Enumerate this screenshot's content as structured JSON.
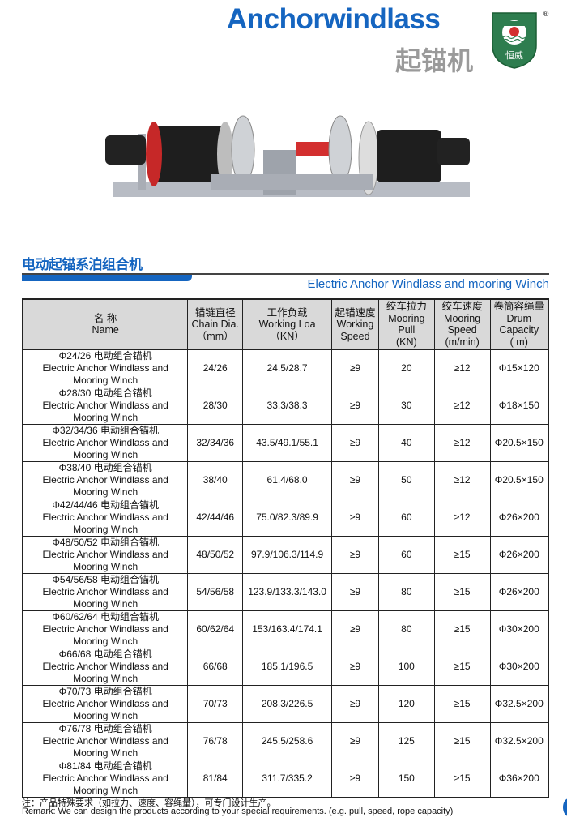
{
  "header": {
    "title_en": "Anchorwindlass",
    "title_cn": "起锚机",
    "logo_text": "恒威",
    "registered": "®"
  },
  "section": {
    "title_cn": "电动起锚系泊组合机",
    "title_en": "Electric Anchor Windlass and mooring Winch"
  },
  "table": {
    "headers": [
      [
        "名 称",
        "Name"
      ],
      [
        "锚链直径",
        "Chain Dia.",
        "（mm）"
      ],
      [
        "工作负载",
        "Working Loa",
        "（KN）"
      ],
      [
        "起锚速度",
        "Working",
        "Speed"
      ],
      [
        "绞车拉力",
        "Mooring",
        "Pull",
        "(KN)"
      ],
      [
        "绞车速度",
        "Mooring",
        "Speed",
        "(m/min)"
      ],
      [
        "卷筒容绳量",
        "Drum",
        "Capacity",
        "( m)"
      ]
    ],
    "rows": [
      {
        "name": [
          "Φ24/26 电动组合锚机",
          "Electric Anchor Windlass and",
          "Mooring Winch"
        ],
        "chain": "24/26",
        "load": "24.5/28.7",
        "speed": "≥9",
        "pull": "20",
        "mspeed": "≥12",
        "drum": "Φ15×120"
      },
      {
        "name": [
          "Φ28/30 电动组合锚机",
          "Electric Anchor Windlass and",
          "Mooring Winch"
        ],
        "chain": "28/30",
        "load": "33.3/38.3",
        "speed": "≥9",
        "pull": "30",
        "mspeed": "≥12",
        "drum": "Φ18×150"
      },
      {
        "name": [
          "Φ32/34/36 电动组合锚机",
          "Electric Anchor Windlass and",
          "Mooring Winch"
        ],
        "chain": "32/34/36",
        "load": "43.5/49.1/55.1",
        "speed": "≥9",
        "pull": "40",
        "mspeed": "≥12",
        "drum": "Φ20.5×150"
      },
      {
        "name": [
          "Φ38/40 电动组合锚机",
          "Electric Anchor Windlass and",
          "Mooring Winch"
        ],
        "chain": "38/40",
        "load": "61.4/68.0",
        "speed": "≥9",
        "pull": "50",
        "mspeed": "≥12",
        "drum": "Φ20.5×150"
      },
      {
        "name": [
          "Φ42/44/46 电动组合锚机",
          "Electric Anchor Windlass and",
          "Mooring Winch"
        ],
        "chain": "42/44/46",
        "load": "75.0/82.3/89.9",
        "speed": "≥9",
        "pull": "60",
        "mspeed": "≥12",
        "drum": "Φ26×200"
      },
      {
        "name": [
          "Φ48/50/52 电动组合锚机",
          "Electric Anchor Windlass and",
          "Mooring Winch"
        ],
        "chain": "48/50/52",
        "load": "97.9/106.3/114.9",
        "speed": "≥9",
        "pull": "60",
        "mspeed": "≥15",
        "drum": "Φ26×200"
      },
      {
        "name": [
          "Φ54/56/58 电动组合锚机",
          "Electric Anchor Windlass and",
          "Mooring Winch"
        ],
        "chain": "54/56/58",
        "load": "123.9/133.3/143.0",
        "speed": "≥9",
        "pull": "80",
        "mspeed": "≥15",
        "drum": "Φ26×200"
      },
      {
        "name": [
          "Φ60/62/64 电动组合锚机",
          "Electric Anchor Windlass and",
          "Mooring Winch"
        ],
        "chain": "60/62/64",
        "load": "153/163.4/174.1",
        "speed": "≥9",
        "pull": "80",
        "mspeed": "≥15",
        "drum": "Φ30×200"
      },
      {
        "name": [
          "Φ66/68 电动组合锚机",
          "Electric Anchor Windlass and",
          "Mooring Winch"
        ],
        "chain": "66/68",
        "load": "185.1/196.5",
        "speed": "≥9",
        "pull": "100",
        "mspeed": "≥15",
        "drum": "Φ30×200"
      },
      {
        "name": [
          "Φ70/73 电动组合锚机",
          "Electric Anchor Windlass and",
          "Mooring Winch"
        ],
        "chain": "70/73",
        "load": "208.3/226.5",
        "speed": "≥9",
        "pull": "120",
        "mspeed": "≥15",
        "drum": "Φ32.5×200"
      },
      {
        "name": [
          "Φ76/78 电动组合锚机",
          "Electric Anchor Windlass and",
          "Mooring Winch"
        ],
        "chain": "76/78",
        "load": "245.5/258.6",
        "speed": "≥9",
        "pull": "125",
        "mspeed": "≥15",
        "drum": "Φ32.5×200"
      },
      {
        "name": [
          "Φ81/84 电动组合锚机",
          "Electric Anchor Windlass and",
          "Mooring Winch"
        ],
        "chain": "81/84",
        "load": "311.7/335.2",
        "speed": "≥9",
        "pull": "150",
        "mspeed": "≥15",
        "drum": "Φ36×200"
      }
    ]
  },
  "notes": {
    "cn": "注：产品特殊要求（如拉力、速度、容绳量），可专门设计生产。",
    "en": "Remark: We can design the products according to your special requirements. (e.g. pull, speed, rope capacity)"
  }
}
